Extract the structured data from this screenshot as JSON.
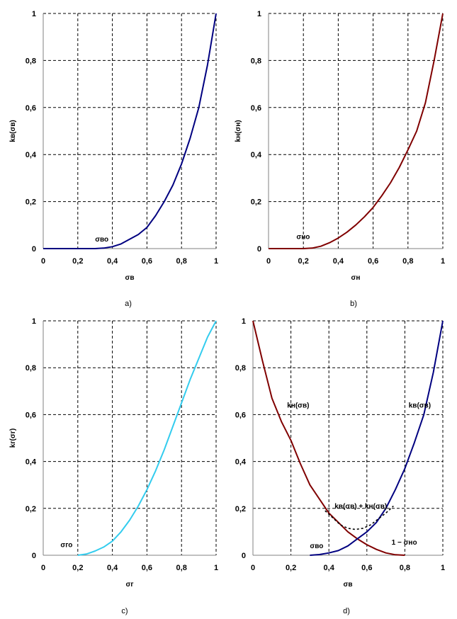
{
  "chart_data": [
    {
      "type": "line",
      "panel_caption": "a)",
      "xlabel": "σв",
      "ylabel": "kв(σв)",
      "xlim": [
        0,
        1
      ],
      "ylim": [
        0,
        1
      ],
      "x_ticks": [
        "0",
        "0,2",
        "0,4",
        "0,6",
        "0,8",
        "1"
      ],
      "y_ticks": [
        "0",
        "0,2",
        "0,4",
        "0,6",
        "0,8",
        "1"
      ],
      "grid": true,
      "annotations": [
        {
          "text": "σво",
          "x": 0.3,
          "y": 0.03
        }
      ],
      "series": [
        {
          "color": "#000080",
          "style": "solid",
          "x": [
            0,
            0.1,
            0.2,
            0.3,
            0.35,
            0.4,
            0.45,
            0.5,
            0.55,
            0.6,
            0.65,
            0.7,
            0.75,
            0.8,
            0.85,
            0.9,
            0.95,
            1.0
          ],
          "y": [
            0,
            0,
            0,
            0,
            0.002,
            0.008,
            0.02,
            0.04,
            0.06,
            0.09,
            0.14,
            0.2,
            0.27,
            0.36,
            0.47,
            0.6,
            0.78,
            1.0
          ]
        }
      ]
    },
    {
      "type": "line",
      "panel_caption": "b)",
      "xlabel": "σн",
      "ylabel": "kн(σн)",
      "xlim": [
        0,
        1
      ],
      "ylim": [
        0,
        1
      ],
      "x_ticks": [
        "0",
        "0,2",
        "0,4",
        "0,6",
        "0,8",
        "1"
      ],
      "y_ticks": [
        "0",
        "0,2",
        "0,4",
        "0,6",
        "0,8",
        "1"
      ],
      "grid": true,
      "annotations": [
        {
          "text": "σно",
          "x": 0.16,
          "y": 0.04
        }
      ],
      "series": [
        {
          "color": "#800000",
          "style": "solid",
          "x": [
            0,
            0.1,
            0.2,
            0.25,
            0.3,
            0.35,
            0.4,
            0.45,
            0.5,
            0.55,
            0.6,
            0.65,
            0.7,
            0.75,
            0.8,
            0.85,
            0.9,
            0.95,
            1.0
          ],
          "y": [
            0,
            0,
            0,
            0.002,
            0.01,
            0.025,
            0.045,
            0.07,
            0.1,
            0.135,
            0.175,
            0.225,
            0.28,
            0.345,
            0.42,
            0.5,
            0.62,
            0.8,
            1.0
          ]
        }
      ]
    },
    {
      "type": "line",
      "panel_caption": "c)",
      "xlabel": "σг",
      "ylabel": "kг(σг)",
      "xlim": [
        0,
        1
      ],
      "ylim": [
        0,
        1
      ],
      "x_ticks": [
        "0",
        "0,2",
        "0,4",
        "0,6",
        "0,8",
        "1"
      ],
      "y_ticks": [
        "0",
        "0,2",
        "0,4",
        "0,6",
        "0,8",
        "1"
      ],
      "grid": true,
      "annotations": [
        {
          "text": "σго",
          "x": 0.1,
          "y": 0.035
        }
      ],
      "series": [
        {
          "color": "#33CCEE",
          "style": "solid",
          "x": [
            0.2,
            0.25,
            0.3,
            0.35,
            0.4,
            0.45,
            0.5,
            0.55,
            0.6,
            0.65,
            0.7,
            0.75,
            0.8,
            0.85,
            0.9,
            0.95,
            1.0
          ],
          "y": [
            0,
            0.005,
            0.018,
            0.035,
            0.06,
            0.1,
            0.15,
            0.21,
            0.28,
            0.36,
            0.45,
            0.55,
            0.65,
            0.75,
            0.84,
            0.93,
            1.0
          ]
        }
      ]
    },
    {
      "type": "line",
      "panel_caption": "d)",
      "xlabel": "σв",
      "ylabel": "",
      "xlim": [
        0,
        1
      ],
      "ylim": [
        0,
        1
      ],
      "x_ticks": [
        "0",
        "0,2",
        "0,4",
        "0,6",
        "0,8",
        "1"
      ],
      "y_ticks": [
        "0",
        "0,2",
        "0,4",
        "0,6",
        "0,8",
        "1"
      ],
      "grid": true,
      "annotations": [
        {
          "text": "kн(σв)",
          "x": 0.18,
          "y": 0.63
        },
        {
          "text": "kв(σв)",
          "x": 0.82,
          "y": 0.63
        },
        {
          "text": "kв(σв) + kн(σв)",
          "x": 0.43,
          "y": 0.2
        },
        {
          "text": "σво",
          "x": 0.3,
          "y": 0.03
        },
        {
          "text": "1 − σно",
          "x": 0.73,
          "y": 0.045
        }
      ],
      "series": [
        {
          "color": "#800000",
          "style": "solid",
          "x": [
            0,
            0.05,
            0.1,
            0.15,
            0.2,
            0.25,
            0.3,
            0.35,
            0.4,
            0.45,
            0.5,
            0.55,
            0.6,
            0.65,
            0.7,
            0.75,
            0.8
          ],
          "y": [
            1.0,
            0.83,
            0.67,
            0.57,
            0.49,
            0.39,
            0.3,
            0.24,
            0.18,
            0.14,
            0.1,
            0.07,
            0.045,
            0.025,
            0.01,
            0.002,
            0
          ]
        },
        {
          "color": "#000080",
          "style": "solid",
          "x": [
            0.3,
            0.35,
            0.4,
            0.45,
            0.5,
            0.55,
            0.6,
            0.65,
            0.7,
            0.75,
            0.8,
            0.85,
            0.9,
            0.95,
            1.0
          ],
          "y": [
            0,
            0.003,
            0.01,
            0.02,
            0.04,
            0.07,
            0.1,
            0.14,
            0.2,
            0.28,
            0.37,
            0.48,
            0.6,
            0.78,
            1.0
          ]
        },
        {
          "color": "#000000",
          "style": "dashed",
          "x": [
            0.38,
            0.42,
            0.46,
            0.5,
            0.54,
            0.58,
            0.62,
            0.66,
            0.7,
            0.74
          ],
          "y": [
            0.19,
            0.16,
            0.13,
            0.115,
            0.11,
            0.115,
            0.13,
            0.155,
            0.18,
            0.21
          ]
        }
      ]
    }
  ]
}
